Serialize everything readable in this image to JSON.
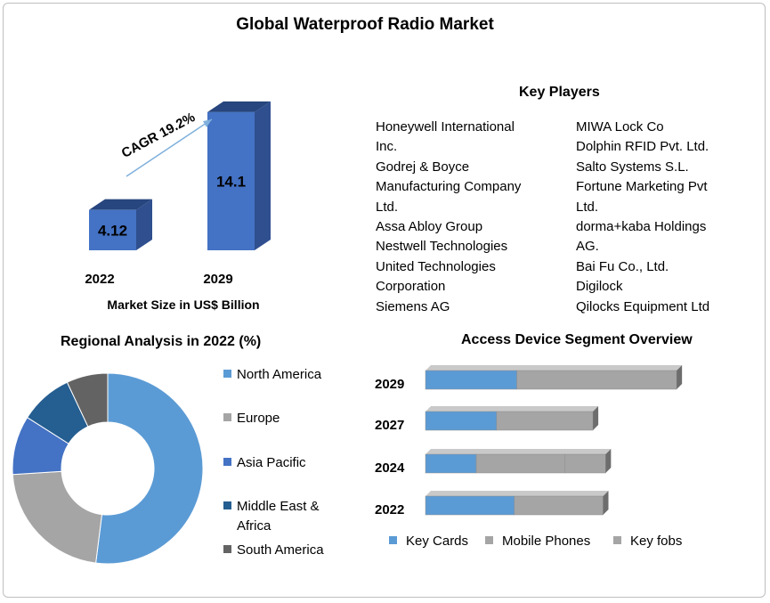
{
  "title": "Global Waterproof Radio Market",
  "chart_data": [
    {
      "type": "bar",
      "categories": [
        "2022",
        "2029"
      ],
      "values": [
        4.12,
        14.1
      ],
      "xlabel": "Market Size in US$ Billion",
      "annotation": "CAGR 19.2%"
    },
    {
      "type": "pie",
      "title": "Regional Analysis in 2022 (%)",
      "categories": [
        "North America",
        "Europe",
        "Asia Pacific",
        "Middle East & Africa",
        "South America"
      ],
      "values": [
        52,
        22,
        10,
        9,
        7
      ],
      "colors": [
        "#5b9bd5",
        "#a5a5a5",
        "#4472c4",
        "#255e91",
        "#636363"
      ],
      "legend": "right"
    },
    {
      "type": "bar",
      "orientation": "horizontal",
      "stacked": true,
      "title": "Access Device Segment Overview",
      "categories": [
        "2029",
        "2027",
        "2024",
        "2022"
      ],
      "series": [
        {
          "name": "Key Cards",
          "values": [
            36,
            28,
            20,
            35
          ],
          "color": "#5b9bd5"
        },
        {
          "name": "Mobile Phones",
          "values": [
            63,
            38,
            35,
            35
          ],
          "color": "#a5a5a5"
        },
        {
          "name": "Key fobs",
          "values": [
            0,
            0,
            16,
            0
          ],
          "color": "#a5a5a5"
        }
      ],
      "legend": "bottom"
    }
  ],
  "key_players": {
    "title": "Key Players",
    "column1": [
      "Honeywell International",
      "Inc.",
      "Godrej & Boyce",
      "Manufacturing Company",
      "Ltd.",
      "Assa Abloy Group",
      "Nestwell Technologies",
      "United Technologies",
      "Corporation",
      "Siemens AG"
    ],
    "column2": [
      "MIWA Lock Co",
      "Dolphin RFID Pvt. Ltd.",
      "Salto Systems S.L.",
      "Fortune Marketing Pvt",
      "Ltd.",
      "dorma+kaba Holdings",
      "AG.",
      "Bai Fu Co., Ltd.",
      "Digilock",
      "Qilocks Equipment  Ltd"
    ]
  }
}
